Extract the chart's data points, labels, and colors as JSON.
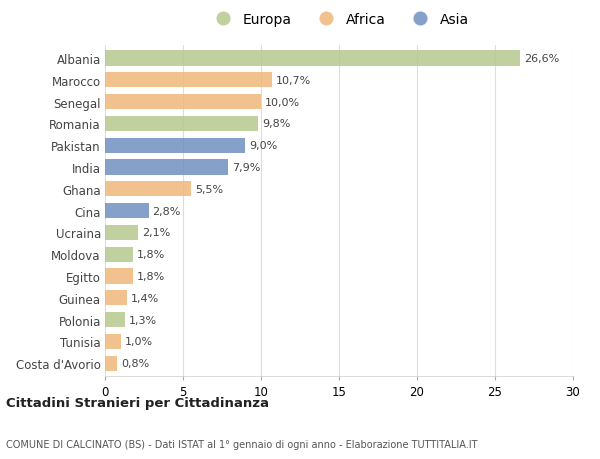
{
  "countries": [
    "Albania",
    "Marocco",
    "Senegal",
    "Romania",
    "Pakistan",
    "India",
    "Ghana",
    "Cina",
    "Ucraina",
    "Moldova",
    "Egitto",
    "Guinea",
    "Polonia",
    "Tunisia",
    "Costa d'Avorio"
  ],
  "values": [
    26.6,
    10.7,
    10.0,
    9.8,
    9.0,
    7.9,
    5.5,
    2.8,
    2.1,
    1.8,
    1.8,
    1.4,
    1.3,
    1.0,
    0.8
  ],
  "labels": [
    "26,6%",
    "10,7%",
    "10,0%",
    "9,8%",
    "9,0%",
    "7,9%",
    "5,5%",
    "2,8%",
    "2,1%",
    "1,8%",
    "1,8%",
    "1,4%",
    "1,3%",
    "1,0%",
    "0,8%"
  ],
  "continent": [
    "Europa",
    "Africa",
    "Africa",
    "Europa",
    "Asia",
    "Asia",
    "Africa",
    "Asia",
    "Europa",
    "Europa",
    "Africa",
    "Africa",
    "Europa",
    "Africa",
    "Africa"
  ],
  "colors": {
    "Europa": "#b5c98e",
    "Africa": "#f0b87a",
    "Asia": "#7090c0"
  },
  "legend_order": [
    "Europa",
    "Africa",
    "Asia"
  ],
  "title": "Cittadini Stranieri per Cittadinanza",
  "subtitle": "COMUNE DI CALCINATO (BS) - Dati ISTAT al 1° gennaio di ogni anno - Elaborazione TUTTITALIA.IT",
  "xlim": [
    0,
    30
  ],
  "xticks": [
    0,
    5,
    10,
    15,
    20,
    25,
    30
  ],
  "background_color": "#ffffff",
  "grid_color": "#dddddd"
}
